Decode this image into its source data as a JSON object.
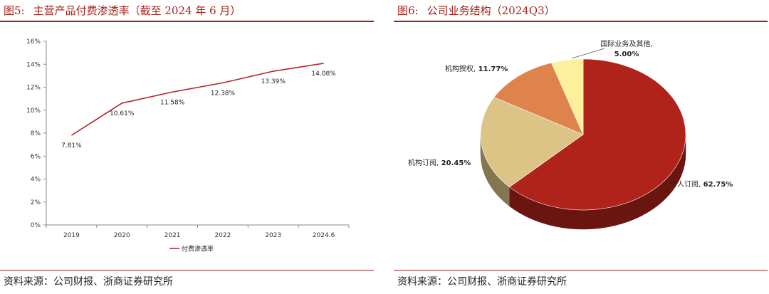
{
  "left": {
    "figure_number": "图5:",
    "figure_title": "主营产品付费渗透率（截至 2024 年 6 月）",
    "source": "资料来源：公司财报、浙商证券研究所"
  },
  "right": {
    "figure_number": "图6:",
    "figure_title": "公司业务结构（2024Q3）",
    "source": "资料来源：公司财报、浙商证券研究所"
  },
  "chart_data": [
    {
      "type": "line",
      "categories": [
        "2019",
        "2020",
        "2021",
        "2022",
        "2023",
        "2024.6"
      ],
      "series": [
        {
          "name": "付费渗透率",
          "values": [
            7.81,
            10.61,
            11.58,
            12.38,
            13.39,
            14.08
          ],
          "color": "#b5262b"
        }
      ],
      "data_labels": [
        "7.81%",
        "10.61%",
        "11.58%",
        "12.38%",
        "13.39%",
        "14.08%"
      ],
      "y_ticks": [
        "0%",
        "2%",
        "4%",
        "6%",
        "8%",
        "10%",
        "12%",
        "14%",
        "16%"
      ],
      "ylim": [
        0,
        16
      ],
      "legend_position": "bottom",
      "grid": false
    },
    {
      "type": "pie",
      "style": "3d",
      "labels": [
        "个人订阅",
        "机构订阅",
        "机构授权",
        "国际业务及其他"
      ],
      "values": [
        62.75,
        20.45,
        11.77,
        5.0
      ],
      "value_labels": [
        "62.75%",
        "20.45%",
        "11.77%",
        "5.00%"
      ],
      "colors": [
        "#b0231b",
        "#dcc487",
        "#df834c",
        "#fdf09c"
      ],
      "legend_position": "none"
    }
  ]
}
